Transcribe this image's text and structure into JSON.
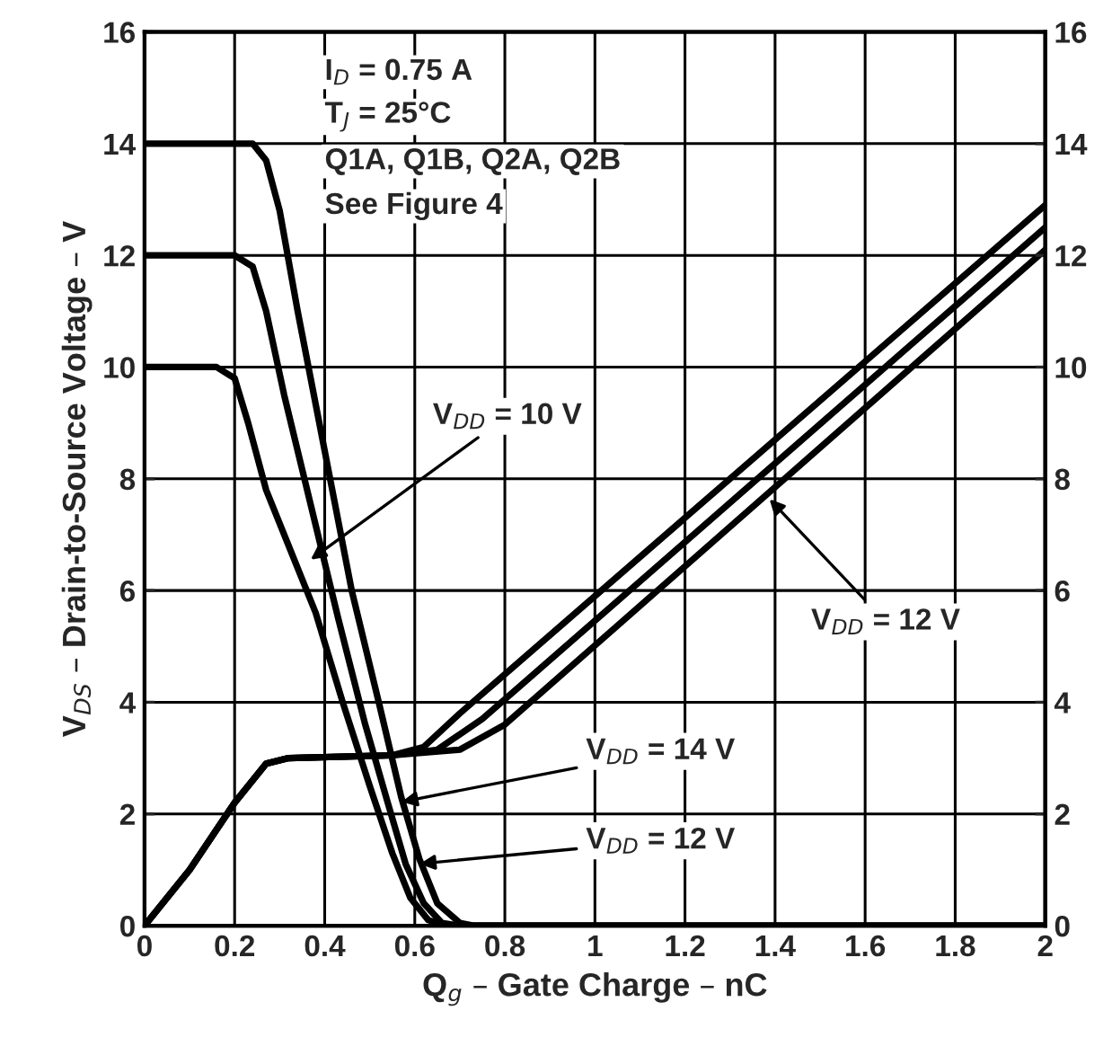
{
  "chart_data": {
    "type": "line",
    "xlabel": "Q$_{g}$ – Gate Charge – nC",
    "ylabel": "V$_{DS}$ – Drain-to-Source Voltage – V",
    "xlim": [
      0,
      2
    ],
    "xticks": [
      0,
      0.2,
      0.4,
      0.6,
      0.8,
      1,
      1.2,
      1.4,
      1.6,
      1.8,
      2
    ],
    "ylim": [
      0,
      16
    ],
    "yticks": [
      0,
      2,
      4,
      6,
      8,
      10,
      12,
      14,
      16
    ],
    "y2lim": [
      0,
      16
    ],
    "y2ticks": [
      0,
      2,
      4,
      6,
      8,
      10,
      12,
      14,
      16
    ],
    "grid": true,
    "line_style": "solid",
    "marker": "none",
    "series": [
      {
        "color": "#000000",
        "x": [
          0,
          0.24,
          0.27,
          0.3,
          0.34,
          0.4,
          0.46,
          0.52,
          0.57,
          0.61,
          0.65,
          0.7,
          0.73,
          2
        ],
        "values": [
          14,
          14,
          13.7,
          12.8,
          11,
          8.5,
          6,
          4,
          2.3,
          1.2,
          0.4,
          0.05,
          0,
          0
        ]
      },
      {
        "color": "#000000",
        "x": [
          0,
          0.2,
          0.24,
          0.27,
          0.31,
          0.37,
          0.43,
          0.49,
          0.54,
          0.58,
          0.62,
          0.66,
          0.7,
          2
        ],
        "values": [
          12,
          12,
          11.8,
          11,
          9.5,
          7.5,
          5.5,
          3.6,
          2.2,
          1.1,
          0.4,
          0.05,
          0,
          0
        ]
      },
      {
        "color": "#000000",
        "x": [
          0,
          0.16,
          0.2,
          0.23,
          0.27,
          0.32,
          0.38,
          0.44,
          0.5,
          0.55,
          0.59,
          0.63,
          0.67,
          2
        ],
        "values": [
          10,
          10,
          9.8,
          9,
          7.8,
          6.8,
          5.6,
          4,
          2.5,
          1.3,
          0.5,
          0.1,
          0,
          0
        ]
      },
      {
        "color": "#000000",
        "x": [
          0,
          0.1,
          0.2,
          0.27,
          0.32,
          0.55,
          0.62,
          0.7,
          2
        ],
        "values": [
          0,
          1,
          2.2,
          2.9,
          3,
          3.05,
          3.2,
          3.8,
          12.9
        ]
      },
      {
        "color": "#000000",
        "x": [
          0,
          0.1,
          0.2,
          0.27,
          0.32,
          0.55,
          0.65,
          0.75,
          2
        ],
        "values": [
          0,
          1,
          2.2,
          2.9,
          3,
          3.05,
          3.15,
          3.7,
          12.5
        ]
      },
      {
        "color": "#000000",
        "x": [
          0,
          0.1,
          0.2,
          0.27,
          0.32,
          0.55,
          0.7,
          0.8,
          2
        ],
        "values": [
          0,
          1,
          2.2,
          2.9,
          3,
          3.05,
          3.15,
          3.6,
          12.1
        ]
      }
    ],
    "annotations": [
      "I$_{D}$ = 0.75 A",
      "T$_{J}$ = 25°C",
      "Q1A, Q1B, Q2A, Q2B",
      "See Figure 4",
      {
        "text": "V$_{DD}$ = 10 V",
        "x": 0.36,
        "y": 6.5
      },
      {
        "text": "V$_{DD}$ = 12 V",
        "x": 1.38,
        "y": 7.7
      },
      {
        "text": "V$_{DD}$ = 14 V",
        "x": 0.56,
        "y": 2.2
      },
      {
        "text": "V$_{DD}$ = 12 V",
        "x": 0.6,
        "y": 1.1
      }
    ]
  }
}
